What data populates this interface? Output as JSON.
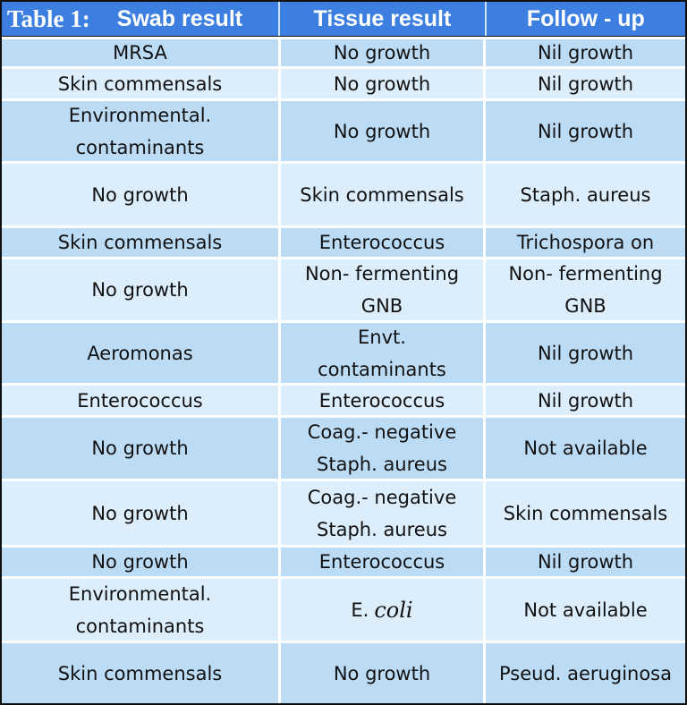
{
  "table": {
    "caption": "Table 1:",
    "headers": [
      "Swab result",
      "Tissue result",
      "Follow - up"
    ],
    "rows": [
      {
        "swab": "MRSA",
        "tissue": "No growth",
        "follow": "Nil growth"
      },
      {
        "swab": "Skin commensals",
        "tissue": "No growth",
        "follow": "Nil growth"
      },
      {
        "swab": "Environmental. contaminants",
        "tissue": "No growth",
        "follow": "Nil growth"
      },
      {
        "swab": "No growth",
        "tissue": "Skin commensals",
        "follow": "Staph.  aureus"
      },
      {
        "swab": "Skin commensals",
        "tissue": "Enterococcus",
        "follow": "Trichospora on"
      },
      {
        "swab": "No growth",
        "tissue": "Non- fermenting GNB",
        "follow": "Non- fermenting GNB"
      },
      {
        "swab": "Aeromonas",
        "tissue": "Envt. contaminants",
        "follow": "Nil growth"
      },
      {
        "swab": "Enterococcus",
        "tissue": "Enterococcus",
        "follow": "Nil growth"
      },
      {
        "swab": "No growth",
        "tissue": "Coag.- negative Staph.  aureus",
        "follow": "Not available"
      },
      {
        "swab": "No growth",
        "tissue": "Coag.- negative Staph.  aureus",
        "follow": "Skin commensals"
      },
      {
        "swab": "No growth",
        "tissue": "Enterococcus",
        "follow": "Nil growth"
      },
      {
        "swab": "Environmental. contaminants",
        "tissue_prefix": "E.",
        "tissue_italic": "coli",
        "follow": "Not available"
      },
      {
        "swab": "Skin commensals",
        "tissue": "No growth",
        "follow": "Pseud. aeruginosa"
      }
    ]
  }
}
